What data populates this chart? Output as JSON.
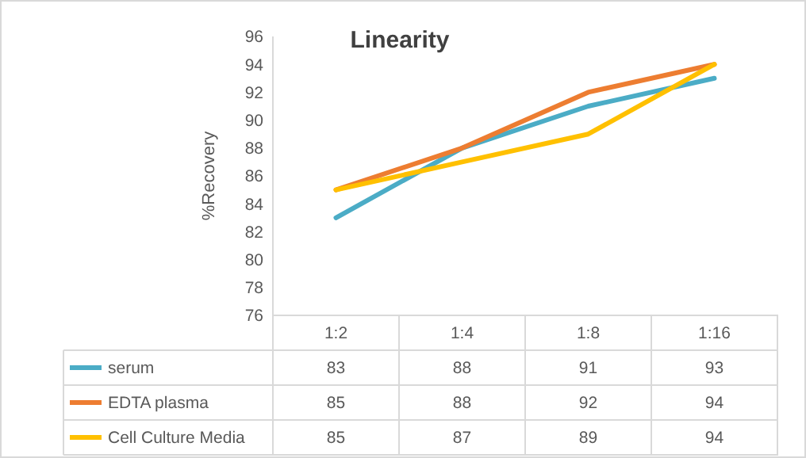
{
  "chart_data": {
    "type": "line",
    "title": "Linearity",
    "ylabel": "%Recovery",
    "categories": [
      "1:2",
      "1:4",
      "1:8",
      "1:16"
    ],
    "series": [
      {
        "name": "serum",
        "color": "#4bacc6",
        "values": [
          83,
          88,
          91,
          93
        ]
      },
      {
        "name": "EDTA plasma",
        "color": "#ed7d31",
        "values": [
          85,
          88,
          92,
          94
        ]
      },
      {
        "name": "Cell Culture Media",
        "color": "#ffc000",
        "values": [
          85,
          87,
          89,
          94
        ]
      }
    ],
    "ylim": [
      76,
      96
    ],
    "yticks": [
      76,
      78,
      80,
      82,
      84,
      86,
      88,
      90,
      92,
      94,
      96
    ],
    "data_labels": true,
    "legend": "bottom",
    "marker": "none",
    "line_style": "solid"
  }
}
